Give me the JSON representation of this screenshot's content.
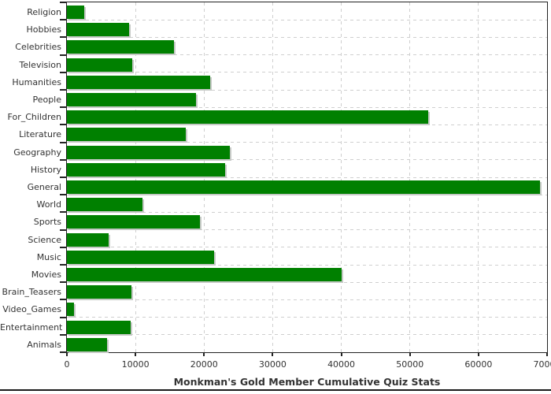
{
  "chart_data": {
    "type": "bar",
    "orientation": "horizontal",
    "title": "Monkman's Gold Member Cumulative Quiz Stats",
    "categories": [
      "Religion",
      "Hobbies",
      "Celebrities",
      "Television",
      "Humanities",
      "People",
      "For_Children",
      "Literature",
      "Geography",
      "History",
      "General",
      "World",
      "Sports",
      "Science",
      "Music",
      "Movies",
      "Brain_Teasers",
      "Video_Games",
      "Entertainment",
      "Animals"
    ],
    "values": [
      2500,
      9100,
      15600,
      9500,
      20900,
      18800,
      52700,
      17300,
      23800,
      23100,
      69000,
      11000,
      19400,
      6100,
      21500,
      40000,
      9400,
      1000,
      9300,
      5800
    ],
    "xlim": [
      0,
      70000
    ],
    "x_ticks": [
      0,
      10000,
      20000,
      30000,
      40000,
      50000,
      60000,
      70000
    ],
    "x_tick_labels": [
      "0",
      "10000",
      "20000",
      "30000",
      "40000",
      "50000",
      "60000",
      "70000"
    ],
    "grid": true,
    "legend": "none",
    "bar_color": "#008000",
    "shadow_color": "#c6c9c6",
    "grid_color": "#cfcfcf",
    "axis_color": "#222222",
    "text_color": "#333333"
  }
}
